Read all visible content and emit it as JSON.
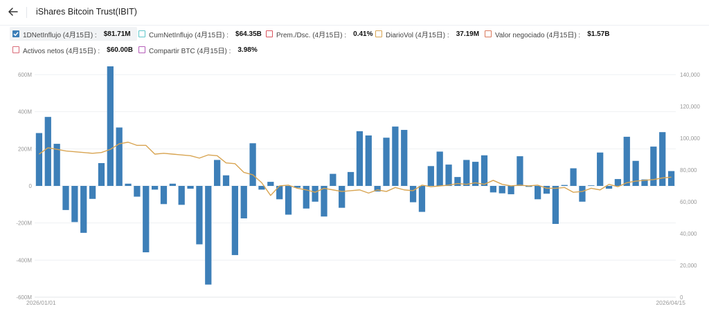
{
  "header": {
    "title": "iShares Bitcoin Trust(IBIT)"
  },
  "legend": [
    {
      "label": "1DNetInflujo (4月15日) :",
      "value": "$81.71M",
      "color": "#3d7fb8",
      "checked": true
    },
    {
      "label": "CumNetInflujo (4月15日) :",
      "value": "$64.35B",
      "color": "#5cc6c9",
      "checked": false
    },
    {
      "label": "Prem./Dsc. (4月15日) :",
      "value": "0.41%",
      "color": "#d9535d",
      "checked": false
    },
    {
      "label": "DiarioVol (4月15日) :",
      "value": "37.19M",
      "color": "#d8a451",
      "checked": false
    },
    {
      "label": "Valor negociado (4月15日) :",
      "value": "$1.57B",
      "color": "#d9785a",
      "checked": false
    },
    {
      "label": "Activos netos (4月15日) :",
      "value": "$60.00B",
      "color": "#d96a77",
      "checked": false
    },
    {
      "label": "Compartir BTC (4月15日) :",
      "value": "3.98%",
      "color": "#b45bb8",
      "checked": false
    }
  ],
  "chart_data": {
    "type": "bar",
    "x_start_label": "2026/01/01",
    "x_end_label": "2026/04/15",
    "left_ticks": [
      "600M",
      "400M",
      "200M",
      "0",
      "-200M",
      "-400M",
      "-600M"
    ],
    "right_ticks": [
      "140,000",
      "120,000",
      "100,000",
      "80,000",
      "60,000",
      "40,000",
      "20,000",
      "0"
    ],
    "left_ylim": [
      -600,
      600
    ],
    "right_ylim": [
      0,
      140000
    ],
    "series": [
      {
        "kind": "bar",
        "color": "#3d7fb8",
        "values": [
          285,
          372,
          227,
          -130,
          -195,
          -253,
          -70,
          123,
          645,
          315,
          12,
          -58,
          -358,
          -20,
          -98,
          12,
          -102,
          -15,
          -315,
          -532,
          140,
          57,
          -373,
          -175,
          230,
          -20,
          22,
          -72,
          -155,
          -10,
          -122,
          -85,
          -165,
          65,
          -118,
          75,
          295,
          272,
          -30,
          260,
          320,
          302,
          -88,
          -140,
          107,
          185,
          115,
          48,
          140,
          130,
          165,
          -35,
          -40,
          -45,
          160,
          -5,
          -72,
          -42,
          -205,
          5,
          95,
          -85,
          3,
          180,
          -15,
          37,
          265,
          135,
          35,
          212,
          290,
          80
        ]
      },
      {
        "kind": "line",
        "color": "#d8a451",
        "values": [
          90000,
          94000,
          93000,
          92000,
          91500,
          91000,
          90500,
          91000,
          93000,
          96500,
          97500,
          95500,
          95500,
          90000,
          90500,
          90000,
          89500,
          89000,
          87500,
          89500,
          89000,
          84500,
          84000,
          78500,
          77000,
          72000,
          64000,
          70000,
          70500,
          68500,
          67500,
          66000,
          68500,
          67500,
          66500,
          67000,
          67500,
          65500,
          67500,
          66500,
          69000,
          67500,
          67000,
          70500,
          69500,
          70000,
          70500,
          71500,
          71000,
          72000,
          71000,
          73500,
          71000,
          70000,
          70500,
          70000,
          70500,
          68500,
          68500,
          69000,
          66000,
          66500,
          68500,
          67500,
          71000,
          69500,
          72000,
          73000,
          73500,
          74000,
          75000,
          75500
        ]
      }
    ]
  }
}
